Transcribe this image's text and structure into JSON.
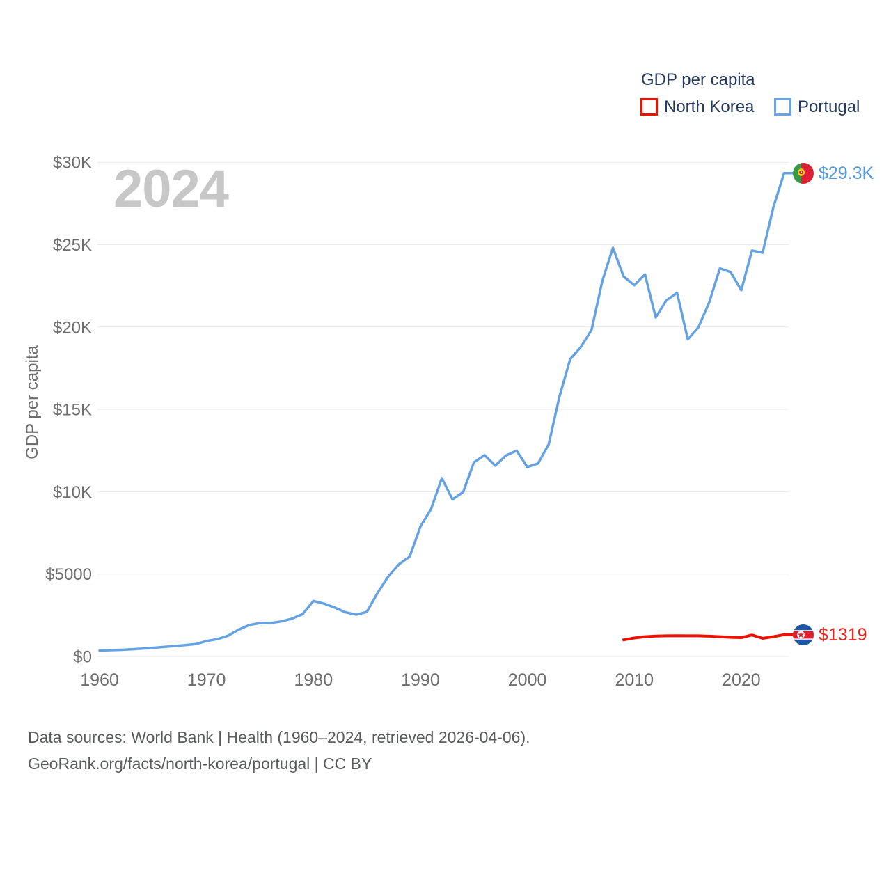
{
  "watermark_year": "2024",
  "y_axis_title": "GDP per capita",
  "legend": {
    "title": "GDP per capita",
    "items": [
      {
        "label": "North Korea",
        "color": "#ee1100"
      },
      {
        "label": "Portugal",
        "color": "#6aa4e4"
      }
    ]
  },
  "footer": {
    "line1": "Data sources: World Bank | Health (1960–2024, retrieved 2026-04-06).",
    "line2": "GeoRank.org/facts/north-korea/portugal | CC BY"
  },
  "chart_data": {
    "type": "line",
    "title": "GDP per capita",
    "xlabel": "",
    "ylabel": "GDP per capita",
    "xlim": [
      1960,
      2024
    ],
    "ylim": [
      0,
      30000
    ],
    "grid": "horizontal",
    "legend_position": "top-right",
    "x_ticks": [
      "1960",
      "1970",
      "1980",
      "1990",
      "2000",
      "2010",
      "2020"
    ],
    "x_tick_years": [
      1960,
      1970,
      1980,
      1990,
      2000,
      2010,
      2020
    ],
    "y_ticks": [
      {
        "label": "$0",
        "value": 0
      },
      {
        "label": "$5000",
        "value": 5000
      },
      {
        "label": "$10K",
        "value": 10000
      },
      {
        "label": "$15K",
        "value": 15000
      },
      {
        "label": "$20K",
        "value": 20000
      },
      {
        "label": "$25K",
        "value": 25000
      },
      {
        "label": "$30K",
        "value": 30000
      }
    ],
    "series": [
      {
        "name": "Portugal",
        "color": "#64a2e4",
        "stroke_width": 3.5,
        "start_year": 1960,
        "values": [
          360,
          382,
          401,
          430,
          475,
          522,
          576,
          630,
          684,
          749,
          935,
          1047,
          1254,
          1624,
          1908,
          2025,
          2030,
          2126,
          2293,
          2575,
          3368,
          3205,
          2963,
          2680,
          2530,
          2705,
          3862,
          4859,
          5594,
          6061,
          7885,
          8951,
          10826,
          9537,
          9977,
          11784,
          12220,
          11585,
          12204,
          12494,
          11502,
          11715,
          12886,
          15772,
          18047,
          18785,
          19821,
          22780,
          24815,
          23064,
          22539,
          23196,
          20577,
          21619,
          22077,
          19250,
          19992,
          21490,
          23562,
          23333,
          22242,
          24651,
          24515,
          27275,
          29341
        ]
      },
      {
        "name": "North Korea",
        "color": "#ee1100",
        "stroke_width": 4,
        "start_year": 2009,
        "values": [
          1010,
          1120,
          1200,
          1240,
          1250,
          1260,
          1250,
          1250,
          1230,
          1200,
          1160,
          1140,
          1300,
          1100,
          1200,
          1319
        ]
      }
    ],
    "end_labels": [
      {
        "series": "Portugal",
        "text": "$29.3K",
        "color": "#5599dd",
        "icon": "portugal-flag-icon"
      },
      {
        "series": "North Korea",
        "text": "$1319",
        "color": "#e8231a",
        "icon": "north-korea-flag-icon"
      }
    ]
  }
}
